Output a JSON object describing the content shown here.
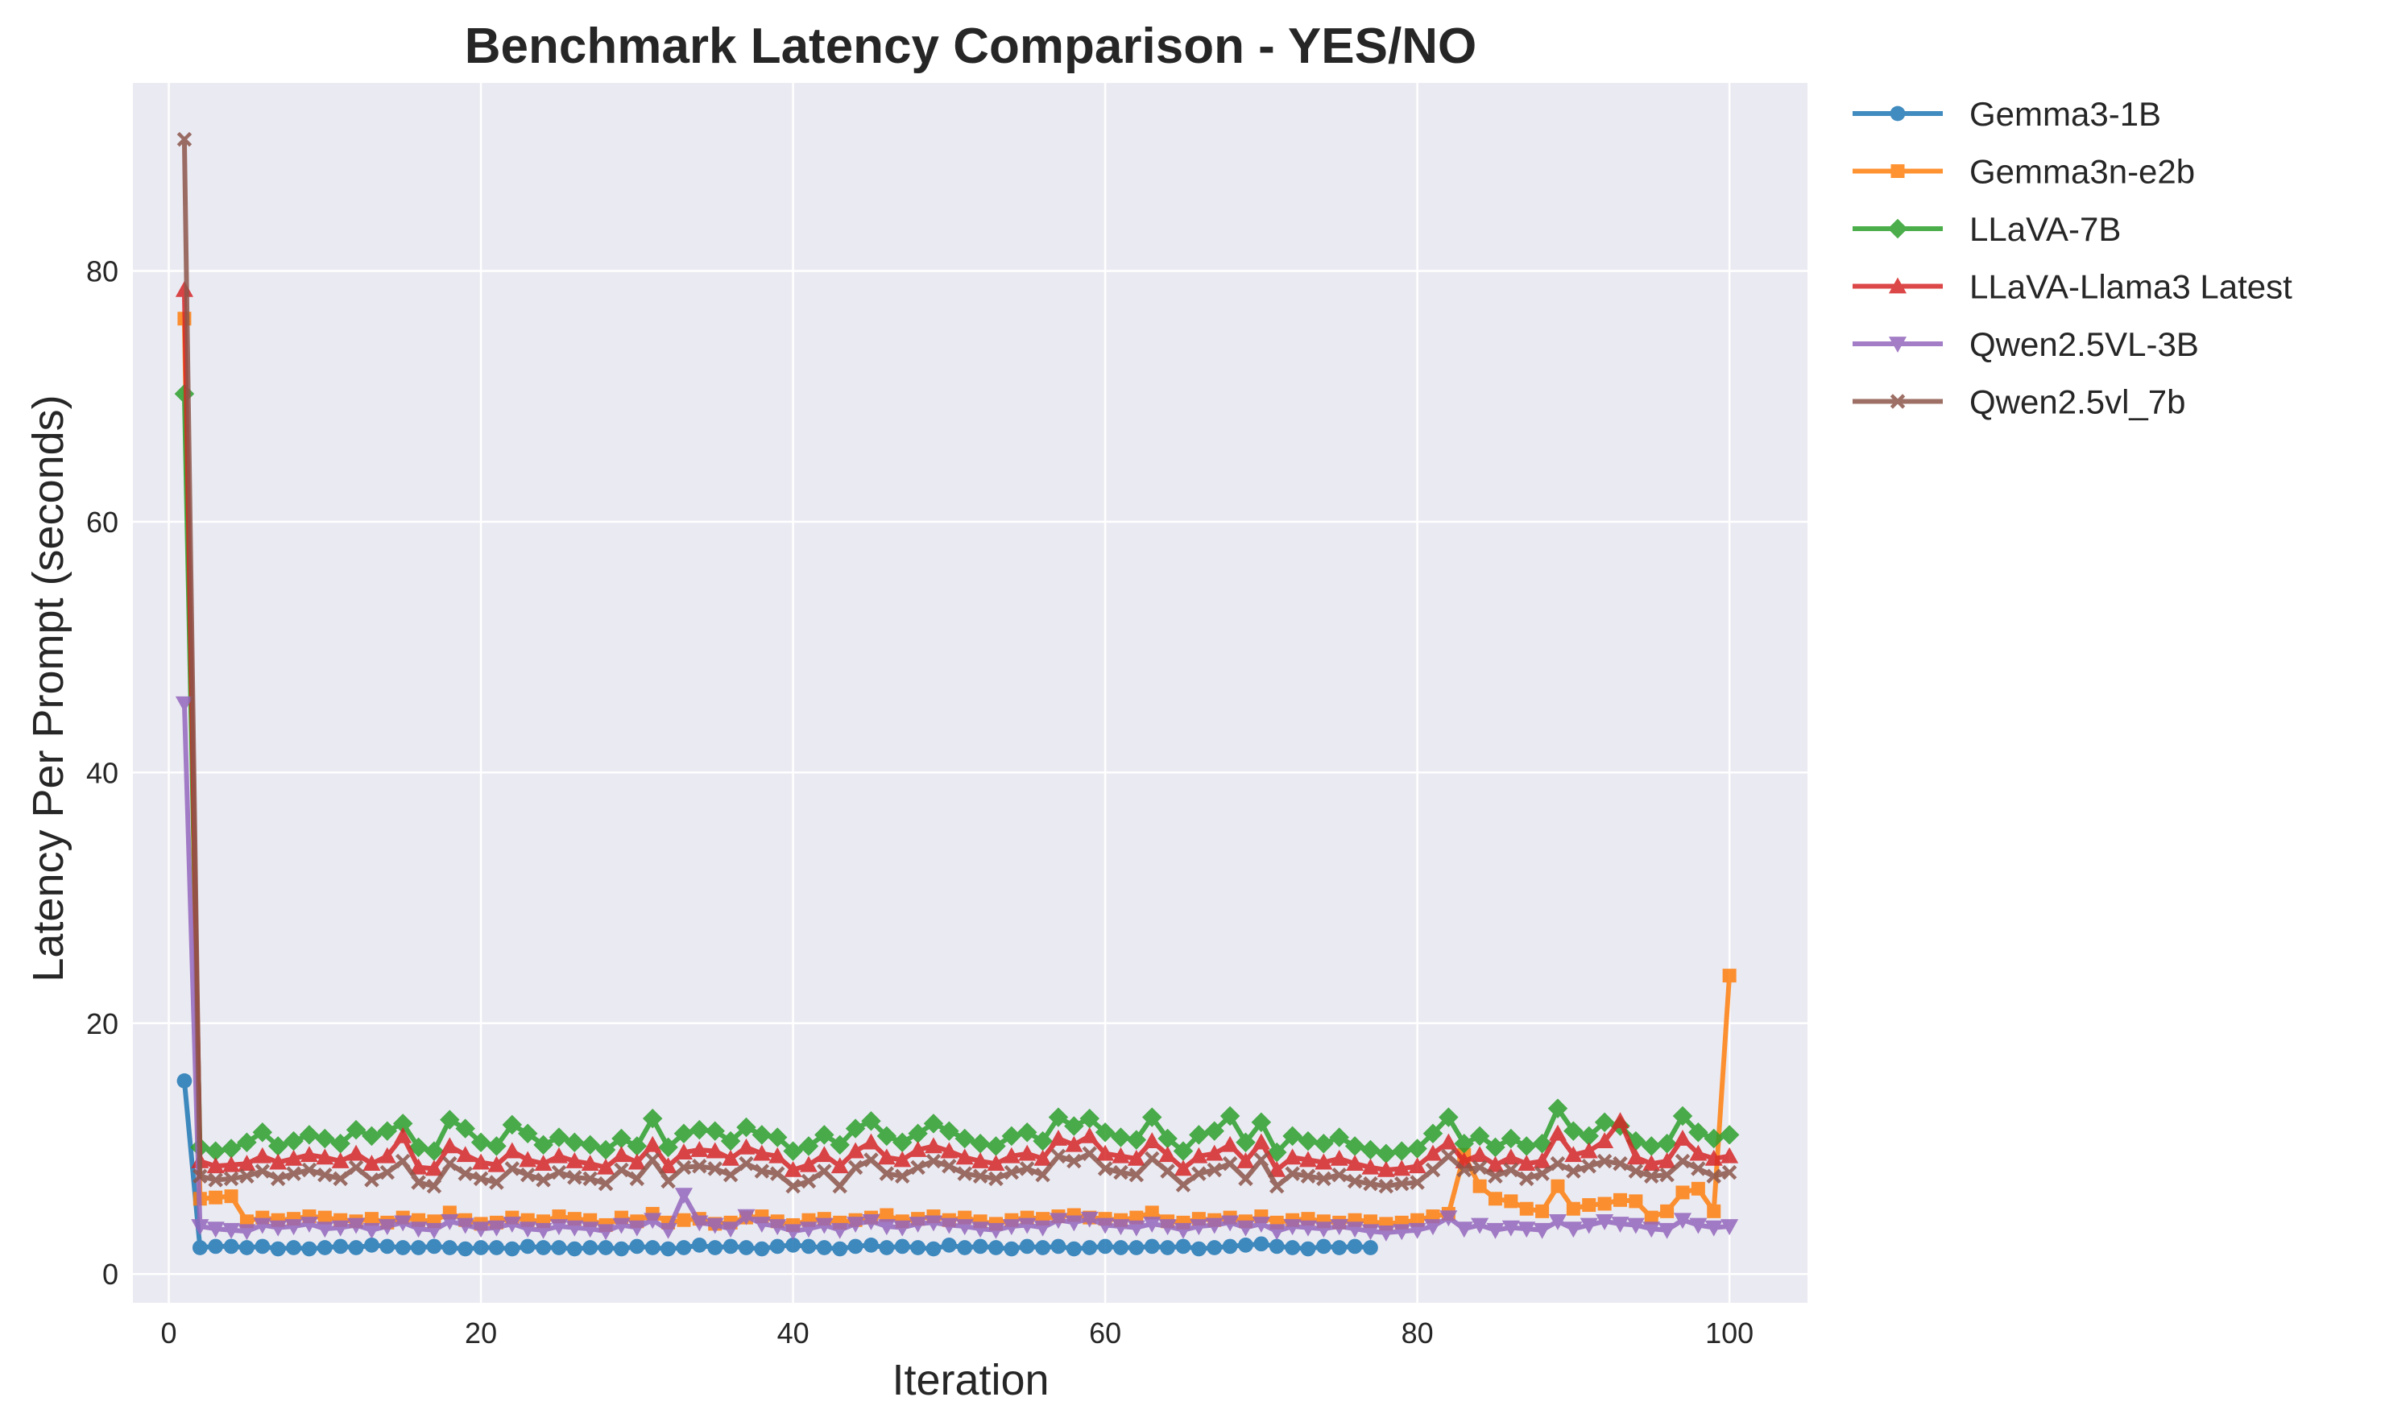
{
  "chart_data": {
    "type": "line",
    "title": "Benchmark Latency Comparison - YES/NO",
    "xlabel": "Iteration",
    "ylabel": "Latency Per Prompt (seconds)",
    "xlim": [
      -2.3,
      105
    ],
    "ylim": [
      -2.3,
      95
    ],
    "xticks": [
      0,
      20,
      40,
      60,
      80,
      100
    ],
    "yticks": [
      0,
      20,
      40,
      60,
      80
    ],
    "grid": true,
    "background": "#eaeaf2",
    "legend": "outside-top-right",
    "series": [
      {
        "name": "Gemma3-1B",
        "color": "#1f77b4",
        "marker": "circle",
        "x": [
          1,
          2,
          3,
          4,
          5,
          6,
          7,
          8,
          9,
          10,
          11,
          12,
          13,
          14,
          15,
          16,
          17,
          18,
          19,
          20,
          21,
          22,
          23,
          24,
          25,
          26,
          27,
          28,
          29,
          30,
          31,
          32,
          33,
          34,
          35,
          36,
          37,
          38,
          39,
          40,
          41,
          42,
          43,
          44,
          45,
          46,
          47,
          48,
          49,
          50,
          51,
          52,
          53,
          54,
          55,
          56,
          57,
          58,
          59,
          60,
          61,
          62,
          63,
          64,
          65,
          66,
          67,
          68,
          69,
          70,
          71,
          72,
          73,
          74,
          75,
          76,
          77
        ],
        "values": [
          15.4,
          2.1,
          2.2,
          2.2,
          2.1,
          2.2,
          2.0,
          2.1,
          2.0,
          2.1,
          2.2,
          2.1,
          2.3,
          2.2,
          2.1,
          2.1,
          2.2,
          2.1,
          2.0,
          2.1,
          2.1,
          2.0,
          2.2,
          2.1,
          2.1,
          2.0,
          2.1,
          2.1,
          2.0,
          2.2,
          2.1,
          2.0,
          2.1,
          2.3,
          2.1,
          2.2,
          2.1,
          2.0,
          2.2,
          2.3,
          2.2,
          2.1,
          2.0,
          2.2,
          2.3,
          2.1,
          2.2,
          2.1,
          2.0,
          2.3,
          2.1,
          2.2,
          2.1,
          2.0,
          2.2,
          2.1,
          2.2,
          2.0,
          2.1,
          2.2,
          2.1,
          2.1,
          2.2,
          2.1,
          2.2,
          2.0,
          2.1,
          2.2,
          2.3,
          2.4,
          2.2,
          2.1,
          2.0,
          2.2,
          2.1,
          2.2,
          2.1
        ]
      },
      {
        "name": "Gemma3n-e2b",
        "color": "#ff7f0e",
        "marker": "square",
        "x": [
          1,
          2,
          3,
          4,
          5,
          6,
          7,
          8,
          9,
          10,
          11,
          12,
          13,
          14,
          15,
          16,
          17,
          18,
          19,
          20,
          21,
          22,
          23,
          24,
          25,
          26,
          27,
          28,
          29,
          30,
          31,
          32,
          33,
          34,
          35,
          36,
          37,
          38,
          39,
          40,
          41,
          42,
          43,
          44,
          45,
          46,
          47,
          48,
          49,
          50,
          51,
          52,
          53,
          54,
          55,
          56,
          57,
          58,
          59,
          60,
          61,
          62,
          63,
          64,
          65,
          66,
          67,
          68,
          69,
          70,
          71,
          72,
          73,
          74,
          75,
          76,
          77,
          78,
          79,
          80,
          81,
          82,
          83,
          84,
          85,
          86,
          87,
          88,
          89,
          90,
          91,
          92,
          93,
          94,
          95,
          96,
          97,
          98,
          99,
          100
        ],
        "values": [
          76.2,
          6.0,
          6.1,
          6.2,
          4.2,
          4.5,
          4.3,
          4.4,
          4.6,
          4.5,
          4.3,
          4.2,
          4.4,
          4.1,
          4.5,
          4.3,
          4.2,
          4.9,
          4.3,
          4.0,
          4.1,
          4.5,
          4.3,
          4.2,
          4.6,
          4.4,
          4.3,
          3.9,
          4.5,
          4.2,
          4.8,
          4.1,
          4.3,
          4.4,
          4.0,
          4.1,
          4.5,
          4.6,
          4.2,
          3.9,
          4.3,
          4.4,
          4.1,
          4.3,
          4.5,
          4.7,
          4.2,
          4.4,
          4.6,
          4.3,
          4.5,
          4.2,
          4.0,
          4.3,
          4.5,
          4.4,
          4.6,
          4.7,
          4.5,
          4.4,
          4.3,
          4.5,
          4.9,
          4.2,
          4.1,
          4.4,
          4.3,
          4.5,
          4.2,
          4.6,
          4.1,
          4.3,
          4.4,
          4.2,
          4.1,
          4.3,
          4.2,
          4.0,
          4.1,
          4.3,
          4.6,
          4.8,
          9.5,
          7.0,
          6.0,
          5.8,
          5.2,
          5.0,
          7.0,
          5.2,
          5.5,
          5.6,
          5.9,
          5.8,
          4.5,
          5.0,
          6.5,
          6.8,
          5.0,
          23.8
        ]
      },
      {
        "name": "LLaVA-7B",
        "color": "#2ca02c",
        "marker": "diamond",
        "x": [
          1,
          2,
          3,
          4,
          5,
          6,
          7,
          8,
          9,
          10,
          11,
          12,
          13,
          14,
          15,
          16,
          17,
          18,
          19,
          20,
          21,
          22,
          23,
          24,
          25,
          26,
          27,
          28,
          29,
          30,
          31,
          32,
          33,
          34,
          35,
          36,
          37,
          38,
          39,
          40,
          41,
          42,
          43,
          44,
          45,
          46,
          47,
          48,
          49,
          50,
          51,
          52,
          53,
          54,
          55,
          56,
          57,
          58,
          59,
          60,
          61,
          62,
          63,
          64,
          65,
          66,
          67,
          68,
          69,
          70,
          71,
          72,
          73,
          74,
          75,
          76,
          77,
          78,
          79,
          80,
          81,
          82,
          83,
          84,
          85,
          86,
          87,
          88,
          89,
          90,
          91,
          92,
          93,
          94,
          95,
          96,
          97,
          98,
          99,
          100
        ],
        "values": [
          70.2,
          10.1,
          9.8,
          10.0,
          10.5,
          11.3,
          10.2,
          10.6,
          11.1,
          10.8,
          10.4,
          11.5,
          11.0,
          11.4,
          12.0,
          10.1,
          9.8,
          12.3,
          11.6,
          10.5,
          10.2,
          11.9,
          11.2,
          10.3,
          10.9,
          10.5,
          10.3,
          9.9,
          10.8,
          10.2,
          12.4,
          10.1,
          11.2,
          11.5,
          11.4,
          10.6,
          11.7,
          11.1,
          10.9,
          9.8,
          10.2,
          11.1,
          10.3,
          11.6,
          12.2,
          11.0,
          10.5,
          11.2,
          12.0,
          11.4,
          10.8,
          10.4,
          10.2,
          11.0,
          11.3,
          10.6,
          12.5,
          11.8,
          12.4,
          11.3,
          10.9,
          10.7,
          12.5,
          10.8,
          9.8,
          11.1,
          11.4,
          12.6,
          10.5,
          12.1,
          9.7,
          11.0,
          10.6,
          10.4,
          10.9,
          10.2,
          9.9,
          9.6,
          9.8,
          10.0,
          11.2,
          12.5,
          10.4,
          11.0,
          10.1,
          10.8,
          10.2,
          10.4,
          13.2,
          11.4,
          11.0,
          12.1,
          11.8,
          10.6,
          10.2,
          10.4,
          12.6,
          11.3,
          10.8,
          11.1
        ]
      },
      {
        "name": "LLaVA-Llama3 Latest",
        "color": "#d62728",
        "marker": "triangle-up",
        "x": [
          1,
          2,
          3,
          4,
          5,
          6,
          7,
          8,
          9,
          10,
          11,
          12,
          13,
          14,
          15,
          16,
          17,
          18,
          19,
          20,
          21,
          22,
          23,
          24,
          25,
          26,
          27,
          28,
          29,
          30,
          31,
          32,
          33,
          34,
          35,
          36,
          37,
          38,
          39,
          40,
          41,
          42,
          43,
          44,
          45,
          46,
          47,
          48,
          49,
          50,
          51,
          52,
          53,
          54,
          55,
          56,
          57,
          58,
          59,
          60,
          61,
          62,
          63,
          64,
          65,
          66,
          67,
          68,
          69,
          70,
          71,
          72,
          73,
          74,
          75,
          76,
          77,
          78,
          79,
          80,
          81,
          82,
          83,
          84,
          85,
          86,
          87,
          88,
          89,
          90,
          91,
          92,
          93,
          94,
          95,
          96,
          97,
          98,
          99,
          100
        ],
        "values": [
          78.5,
          9.0,
          8.6,
          8.7,
          8.8,
          9.4,
          8.9,
          9.2,
          9.5,
          9.3,
          9.0,
          9.6,
          8.8,
          9.4,
          11.0,
          8.5,
          8.4,
          10.2,
          9.5,
          8.9,
          8.7,
          9.8,
          9.1,
          8.8,
          9.4,
          9.0,
          8.8,
          8.5,
          9.5,
          8.9,
          10.3,
          8.6,
          9.7,
          9.9,
          9.8,
          9.2,
          10.1,
          9.6,
          9.4,
          8.3,
          8.7,
          9.5,
          8.6,
          9.8,
          10.5,
          9.3,
          9.1,
          9.9,
          10.2,
          9.8,
          9.3,
          9.0,
          8.8,
          9.4,
          9.6,
          9.2,
          10.8,
          10.3,
          11.0,
          9.6,
          9.4,
          9.2,
          10.6,
          9.5,
          8.4,
          9.4,
          9.6,
          10.3,
          9.0,
          10.5,
          8.3,
          9.3,
          9.1,
          8.9,
          9.2,
          8.8,
          8.5,
          8.3,
          8.4,
          8.6,
          9.6,
          10.5,
          9.0,
          9.5,
          8.7,
          9.3,
          8.8,
          9.0,
          11.2,
          9.5,
          9.8,
          10.6,
          12.2,
          9.3,
          8.8,
          9.0,
          10.8,
          9.6,
          9.2,
          9.4
        ]
      },
      {
        "name": "Qwen2.5VL-3B",
        "color": "#9467bd",
        "marker": "triangle-down",
        "x": [
          1,
          2,
          3,
          4,
          5,
          6,
          7,
          8,
          9,
          10,
          11,
          12,
          13,
          14,
          15,
          16,
          17,
          18,
          19,
          20,
          21,
          22,
          23,
          24,
          25,
          26,
          27,
          28,
          29,
          30,
          31,
          32,
          33,
          34,
          35,
          36,
          37,
          38,
          39,
          40,
          41,
          42,
          43,
          44,
          45,
          46,
          47,
          48,
          49,
          50,
          51,
          52,
          53,
          54,
          55,
          56,
          57,
          58,
          59,
          60,
          61,
          62,
          63,
          64,
          65,
          66,
          67,
          68,
          69,
          70,
          71,
          72,
          73,
          74,
          75,
          76,
          77,
          78,
          79,
          80,
          81,
          82,
          83,
          84,
          85,
          86,
          87,
          88,
          89,
          90,
          91,
          92,
          93,
          94,
          95,
          96,
          97,
          98,
          99,
          100
        ],
        "values": [
          45.5,
          3.8,
          3.6,
          3.5,
          3.4,
          3.9,
          3.7,
          3.8,
          4.0,
          3.6,
          3.7,
          3.9,
          3.5,
          3.8,
          4.1,
          3.6,
          3.5,
          4.2,
          3.9,
          3.6,
          3.7,
          4.0,
          3.6,
          3.5,
          3.8,
          3.7,
          3.6,
          3.4,
          3.9,
          3.7,
          4.3,
          3.5,
          6.3,
          4.1,
          3.9,
          3.6,
          4.6,
          4.0,
          3.8,
          3.4,
          3.6,
          3.9,
          3.5,
          4.0,
          4.2,
          3.8,
          3.7,
          4.0,
          4.1,
          3.9,
          3.8,
          3.6,
          3.5,
          3.8,
          3.9,
          3.7,
          4.3,
          4.1,
          4.4,
          3.9,
          3.8,
          3.7,
          4.0,
          3.8,
          3.5,
          3.8,
          3.9,
          4.1,
          3.7,
          4.0,
          3.4,
          3.8,
          3.7,
          3.6,
          3.8,
          3.6,
          3.4,
          3.3,
          3.4,
          3.5,
          3.8,
          4.5,
          3.6,
          3.9,
          3.5,
          3.7,
          3.6,
          3.5,
          4.2,
          3.6,
          3.9,
          4.2,
          4.0,
          3.9,
          3.6,
          3.5,
          4.3,
          3.9,
          3.7,
          3.8
        ]
      },
      {
        "name": "Qwen2.5vl_7b",
        "color": "#8c564b",
        "marker": "x",
        "x": [
          1,
          2,
          3,
          4,
          5,
          6,
          7,
          8,
          9,
          10,
          11,
          12,
          13,
          14,
          15,
          16,
          17,
          18,
          19,
          20,
          21,
          22,
          23,
          24,
          25,
          26,
          27,
          28,
          29,
          30,
          31,
          32,
          33,
          34,
          35,
          36,
          37,
          38,
          39,
          40,
          41,
          42,
          43,
          44,
          45,
          46,
          47,
          48,
          49,
          50,
          51,
          52,
          53,
          54,
          55,
          56,
          57,
          58,
          59,
          60,
          61,
          62,
          63,
          64,
          65,
          66,
          67,
          68,
          69,
          70,
          71,
          72,
          73,
          74,
          75,
          76,
          77,
          78,
          79,
          80,
          81,
          82,
          83,
          84,
          85,
          86,
          87,
          88,
          89,
          90,
          91,
          92,
          93,
          94,
          95,
          96,
          97,
          98,
          99,
          100
        ],
        "values": [
          90.5,
          7.8,
          7.5,
          7.6,
          7.8,
          8.2,
          7.6,
          8.0,
          8.3,
          7.9,
          7.6,
          8.5,
          7.5,
          8.1,
          9.0,
          7.3,
          7.0,
          8.8,
          8.0,
          7.6,
          7.3,
          8.4,
          7.9,
          7.5,
          8.1,
          7.7,
          7.6,
          7.2,
          8.3,
          7.6,
          9.1,
          7.4,
          8.5,
          8.6,
          8.4,
          7.9,
          8.8,
          8.2,
          8.0,
          7.0,
          7.4,
          8.2,
          7.0,
          8.5,
          9.1,
          8.0,
          7.8,
          8.5,
          9.0,
          8.6,
          8.0,
          7.8,
          7.6,
          8.1,
          8.4,
          7.9,
          9.4,
          9.0,
          9.6,
          8.4,
          8.1,
          7.9,
          9.2,
          8.2,
          7.1,
          8.0,
          8.3,
          8.8,
          7.6,
          9.1,
          7.0,
          8.0,
          7.8,
          7.6,
          7.9,
          7.4,
          7.2,
          7.0,
          7.2,
          7.3,
          8.3,
          9.4,
          8.3,
          8.5,
          7.8,
          8.3,
          7.6,
          8.0,
          8.8,
          8.2,
          8.6,
          9.0,
          8.8,
          8.2,
          7.8,
          7.9,
          9.0,
          8.4,
          7.8,
          8.1
        ]
      }
    ]
  }
}
